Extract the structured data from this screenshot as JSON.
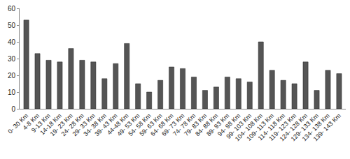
{
  "chart_data": {
    "type": "bar",
    "categories": [
      "0- 30 Km",
      "4-8 Km",
      "9-13 Km",
      "14-18 Km",
      "19- 23 Km",
      "24- 28 Km",
      "29- 33 Km",
      "34- 38 Km",
      "39- 43 Km",
      "44-48 Km",
      "49- 53 Km",
      "54- 58 Km",
      "59- 63 Km",
      "64- 68 Km",
      "69- 73 Km",
      "74- 78 Km",
      "79- 83 Km",
      "84- 88 Km",
      "89- 93 Km",
      "94- 98 Km",
      "99- 103 Km",
      "104- 108 Km",
      "109- 113 Km",
      "114- 118 Km",
      "119- 123 Km",
      "124- 128 Km",
      "129- 133 Km",
      "134- 138 Km",
      "139- 143 Km"
    ],
    "values": [
      53,
      33,
      29,
      28,
      36,
      29,
      28,
      18,
      27,
      39,
      15,
      10,
      17,
      25,
      24,
      19,
      11,
      13,
      19,
      18,
      16,
      40,
      23,
      17,
      15,
      28,
      11,
      23,
      21
    ],
    "color": "#555555",
    "ylim": [
      0,
      60
    ],
    "yticks": [
      0,
      10,
      20,
      30,
      40,
      50,
      60
    ],
    "grid": false
  }
}
